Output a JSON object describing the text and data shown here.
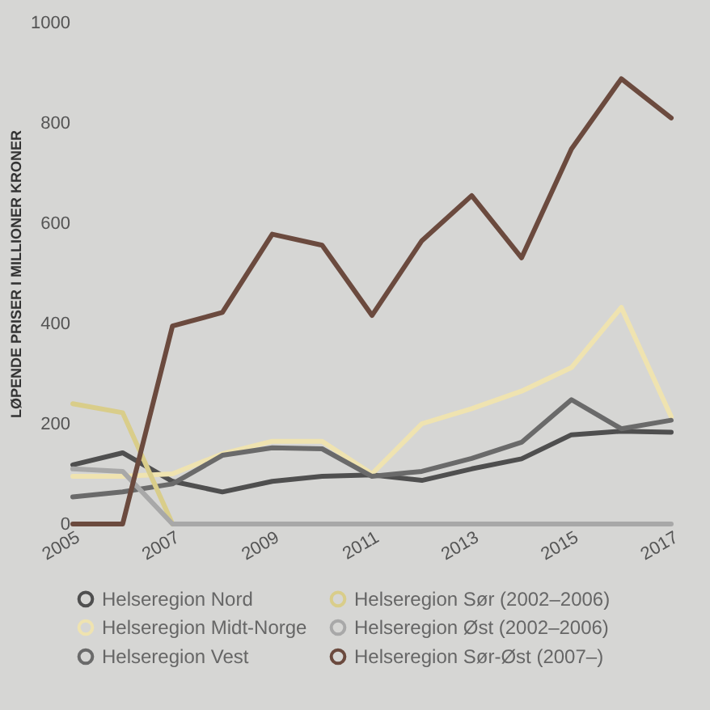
{
  "chart_data": {
    "type": "line",
    "ylabel": "LØPENDE PRISER I MILLIONER KRONER",
    "x": [
      2005,
      2006,
      2007,
      2008,
      2009,
      2010,
      2011,
      2012,
      2013,
      2014,
      2015,
      2016,
      2017
    ],
    "xlim": [
      2005,
      2017
    ],
    "xticks": [
      2005,
      2007,
      2009,
      2011,
      2013,
      2015,
      2017
    ],
    "ylim": [
      0,
      1000
    ],
    "yticks": [
      0,
      200,
      400,
      600,
      800,
      1000
    ],
    "grid": false,
    "legend": "bottom",
    "marker": "none",
    "line_style": "solid",
    "series": [
      {
        "name": "Helseregion Nord",
        "color": "#4f4f4f",
        "values": [
          118,
          142,
          85,
          64,
          85,
          95,
          98,
          87,
          110,
          130,
          178,
          185,
          183
        ]
      },
      {
        "name": "Helseregion Midt-Norge",
        "color": "#efe3b0",
        "values": [
          95,
          95,
          100,
          140,
          165,
          165,
          100,
          200,
          230,
          265,
          312,
          432,
          214
        ]
      },
      {
        "name": "Helseregion Vest",
        "color": "#6a6a6a",
        "values": [
          54,
          64,
          80,
          137,
          152,
          150,
          95,
          105,
          131,
          163,
          248,
          190,
          207
        ]
      },
      {
        "name": "Helseregion Sør (2002–2006)",
        "color": "#d9cd8a",
        "values": [
          240,
          222,
          0,
          null,
          null,
          null,
          null,
          null,
          null,
          null,
          null,
          null,
          null
        ]
      },
      {
        "name": "Helseregion Øst (2002–2006)",
        "color": "#a8a8a8",
        "values": [
          110,
          105,
          0,
          0,
          0,
          0,
          0,
          0,
          0,
          0,
          0,
          0,
          0
        ]
      },
      {
        "name": "Helseregion Sør-Øst (2007–)",
        "color": "#6b4a3e",
        "values": [
          0,
          0,
          395,
          422,
          578,
          556,
          416,
          565,
          655,
          531,
          748,
          888,
          810
        ]
      }
    ]
  }
}
